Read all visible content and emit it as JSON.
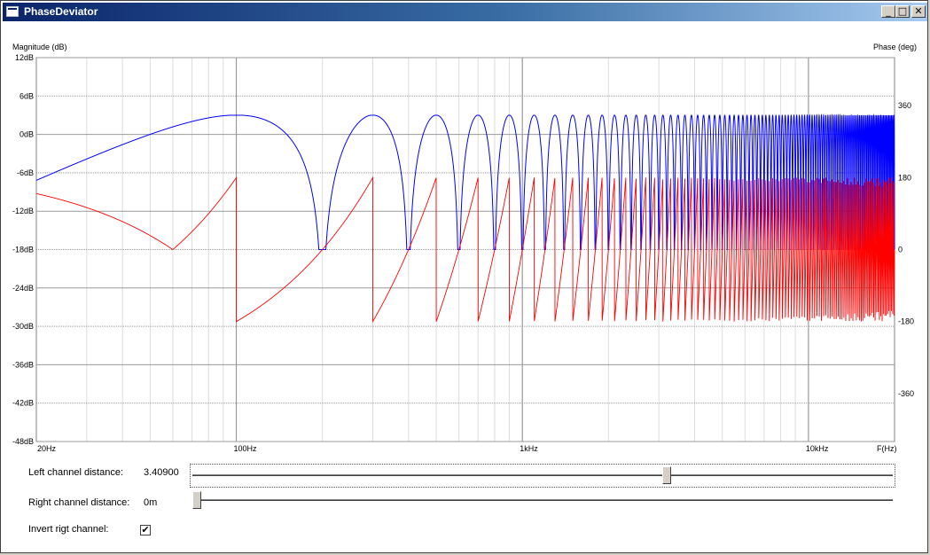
{
  "window": {
    "title": "PhaseDeviator",
    "minimize_glyph": "_",
    "maximize_glyph": "□",
    "close_glyph": "✕"
  },
  "chart": {
    "ylabel_left": "Magnitude (dB)",
    "ylabel_right": "Phase (deg)",
    "xlabel": "F(Hz)",
    "y_ticks": [
      "12dB",
      "6dB",
      "0dB",
      "-6dB",
      "-12dB",
      "-18dB",
      "-24dB",
      "-30dB",
      "-36dB",
      "-42dB",
      "-48dB"
    ],
    "phase_ticks": [
      "360",
      "180",
      "0",
      "-180",
      "-360"
    ],
    "x_ticks": [
      "20Hz",
      "100Hz",
      "1kHz",
      "10kHz"
    ]
  },
  "chart_data": {
    "type": "line",
    "x_scale": "log",
    "xlim": [
      20,
      20000
    ],
    "ylim_left": [
      -48,
      12
    ],
    "ylim_right": [
      -480,
      480
    ],
    "grid": true,
    "series": [
      {
        "role": "magnitude",
        "color": "#0000ff",
        "axis": "left",
        "max_db": 3,
        "first_notch_hz": 100,
        "notch_spacing_hz": 200,
        "min_db": -18
      },
      {
        "role": "phase",
        "color": "#ff0000",
        "axis": "right",
        "deg_at_20hz": 140,
        "deg_at_60hz": 0,
        "deg_at_100hz": 180,
        "range_deg": [
          -180,
          180
        ]
      }
    ]
  },
  "controls": {
    "left": {
      "label": "Left channel distance:",
      "value": "3.40900",
      "position": 0.68
    },
    "right": {
      "label": "Right channel distance:",
      "value": "0m",
      "position": 0.0
    },
    "invert": {
      "label": "Invert rigt channel:",
      "checked": true,
      "check_glyph": "✔"
    }
  }
}
